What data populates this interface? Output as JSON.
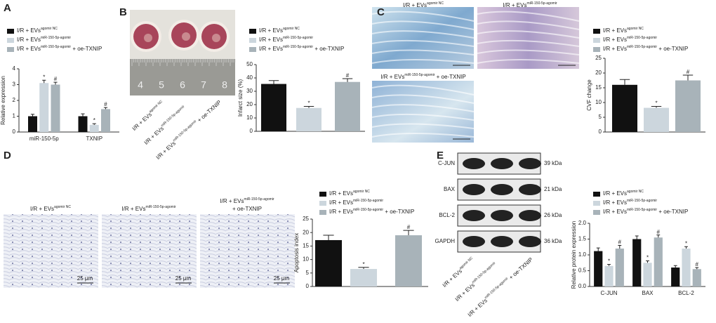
{
  "chart_data": [
    {
      "type": "bar",
      "panel": "A",
      "ylabel": "Relative expression",
      "categories": [
        "miR-150-5p",
        "TXNIP"
      ],
      "ylim": [
        0,
        4
      ],
      "yticks": [
        0,
        1,
        2,
        3,
        4
      ],
      "series": [
        {
          "name": "I/R + EVs",
          "superscript": "agomir NC",
          "color": "#111111",
          "values": [
            1.0,
            1.0
          ],
          "errors": [
            0.12,
            0.15
          ],
          "significance": [
            null,
            null
          ]
        },
        {
          "name": "I/R + EVs",
          "superscript": "miR-150-5p-agomir",
          "color": "#ccd6dd",
          "values": [
            3.1,
            0.45
          ],
          "errors": [
            0.18,
            0.08
          ],
          "significance": [
            "*",
            "*"
          ]
        },
        {
          "name": "I/R + EVs",
          "superscript": "miR-150-5p-agomir",
          "suffix": " + oe-TXNIP",
          "color": "#a8b3b9",
          "values": [
            3.0,
            1.45
          ],
          "errors": [
            0.15,
            0.1
          ],
          "significance": [
            "#",
            "#"
          ]
        }
      ]
    },
    {
      "type": "bar",
      "panel": "B",
      "ylabel": "Infarct size (%)",
      "ylim": [
        0,
        50
      ],
      "yticks": [
        0,
        10,
        20,
        30,
        40,
        50
      ],
      "ruler_labels": [
        4,
        5,
        6,
        7,
        8
      ],
      "image_labels": [
        {
          "name": "I/R + EVs",
          "superscript": "agomir NC"
        },
        {
          "name": "I/R + EVs",
          "superscript": "miR-150-5p-agomir"
        },
        {
          "name": "I/R + EVs",
          "superscript": "miR-150-5p-agomir",
          "suffix": " + oe-TXNIP"
        }
      ],
      "series": [
        {
          "name": "I/R + EVs",
          "superscript": "agomir NC",
          "color": "#111111",
          "values": [
            35.5
          ],
          "errors": [
            2.5
          ],
          "significance": [
            null
          ]
        },
        {
          "name": "I/R + EVs",
          "superscript": "miR-150-5p-agomir",
          "color": "#ccd6dd",
          "values": [
            17.5
          ],
          "errors": [
            1.2
          ],
          "significance": [
            "*"
          ]
        },
        {
          "name": "I/R + EVs",
          "superscript": "miR-150-5p-agomir",
          "suffix": " + oe-TXNIP",
          "color": "#a8b3b9",
          "values": [
            37
          ],
          "errors": [
            2.5
          ],
          "significance": [
            "#"
          ]
        }
      ]
    },
    {
      "type": "bar",
      "panel": "C",
      "ylabel": "CVF change",
      "ylim": [
        0,
        25
      ],
      "yticks": [
        0,
        5,
        10,
        15,
        20,
        25
      ],
      "image_labels": [
        {
          "name": "I/R + EVs",
          "superscript": "agomir NC"
        },
        {
          "name": "I/R + EVs",
          "superscript": "miR-150-5p-agomir"
        },
        {
          "name": "I/R + EVs",
          "superscript": "miR-150-5p-agomir",
          "suffix": " + oe-TXNIP"
        }
      ],
      "series": [
        {
          "name": "I/R + EVs",
          "superscript": "agomir NC",
          "color": "#111111",
          "values": [
            16
          ],
          "errors": [
            1.8
          ],
          "significance": [
            null
          ]
        },
        {
          "name": "I/R + EVs",
          "superscript": "miR-150-5p-agomir",
          "color": "#ccd6dd",
          "values": [
            8.2
          ],
          "errors": [
            0.5
          ],
          "significance": [
            "*"
          ]
        },
        {
          "name": "I/R + EVs",
          "superscript": "miR-150-5p-agomir",
          "suffix": " + oe-TXNIP",
          "color": "#a8b3b9",
          "values": [
            17.5
          ],
          "errors": [
            1.8
          ],
          "significance": [
            "#"
          ]
        }
      ]
    },
    {
      "type": "bar",
      "panel": "D",
      "ylabel": "Apoptosis index",
      "ylim": [
        0,
        25
      ],
      "yticks": [
        0,
        5,
        10,
        15,
        20,
        25
      ],
      "scale_bar": "25 μm",
      "image_labels": [
        {
          "name": "I/R + EVs",
          "superscript": "agomir NC"
        },
        {
          "name": "I/R + EVs",
          "superscript": "miR-150-5p-agomir"
        },
        {
          "name": "I/R + EVs",
          "superscript": "miR-150-5p-agomir",
          "suffix": "+ oe-TXNIP"
        }
      ],
      "series": [
        {
          "name": "I/R + EVs",
          "superscript": "agomir NC",
          "color": "#111111",
          "values": [
            17.2
          ],
          "errors": [
            1.8
          ],
          "significance": [
            null
          ]
        },
        {
          "name": "I/R + EVs",
          "superscript": "miR-150-5p-agomir",
          "color": "#ccd6dd",
          "values": [
            6.5
          ],
          "errors": [
            0.6
          ],
          "significance": [
            "*"
          ]
        },
        {
          "name": "I/R + EVs",
          "superscript": "miR-150-5p-agomir",
          "suffix": " + oe-TXNIP",
          "color": "#a8b3b9",
          "values": [
            19
          ],
          "errors": [
            1.8
          ],
          "significance": [
            "#"
          ]
        }
      ]
    },
    {
      "type": "bar",
      "panel": "E",
      "ylabel": "Relative protein expression",
      "categories": [
        "C-JUN",
        "BAX",
        "BCL-2"
      ],
      "ylim": [
        0,
        2
      ],
      "yticks": [
        {
          "value": 0,
          "label": "0.0"
        },
        {
          "value": 0.5,
          "label": "0.5"
        },
        {
          "value": 1,
          "label": "1.0"
        },
        {
          "value": 1.5,
          "label": "1.5"
        },
        {
          "value": 2,
          "label": "2.0"
        }
      ],
      "blot_labels": [
        "C-JUN",
        "BAX",
        "BCL-2",
        "GAPDH"
      ],
      "blot_sizes": [
        "39 kDa",
        "21 kDa",
        "26 kDa",
        "36 kDa"
      ],
      "image_labels": [
        {
          "name": "I/R + EVs",
          "superscript": "agomir NC"
        },
        {
          "name": "I/R + EVs",
          "superscript": "miR-150-5p-agomir"
        },
        {
          "name": "I/R + EVs",
          "superscript": "miR-150-5p-agomir",
          "suffix": " + oe-TXNIP"
        }
      ],
      "series": [
        {
          "name": "I/R + EVs",
          "superscript": "agomir NC",
          "color": "#111111",
          "values": [
            1.12,
            1.5,
            0.6
          ],
          "errors": [
            0.1,
            0.1,
            0.06
          ],
          "significance": [
            null,
            null,
            null
          ]
        },
        {
          "name": "I/R + EVs",
          "superscript": "miR-150-5p-agomir",
          "color": "#ccd6dd",
          "values": [
            0.65,
            0.75,
            1.2
          ],
          "errors": [
            0.05,
            0.06,
            0.06
          ],
          "significance": [
            "*",
            "*",
            "*"
          ]
        },
        {
          "name": "I/R + EVs",
          "superscript": "miR-150-5p-agomir",
          "suffix": " + oe-TXNIP",
          "color": "#a8b3b9",
          "values": [
            1.2,
            1.55,
            0.55
          ],
          "errors": [
            0.1,
            0.08,
            0.05
          ],
          "significance": [
            "#",
            "#",
            "#"
          ]
        }
      ]
    }
  ]
}
